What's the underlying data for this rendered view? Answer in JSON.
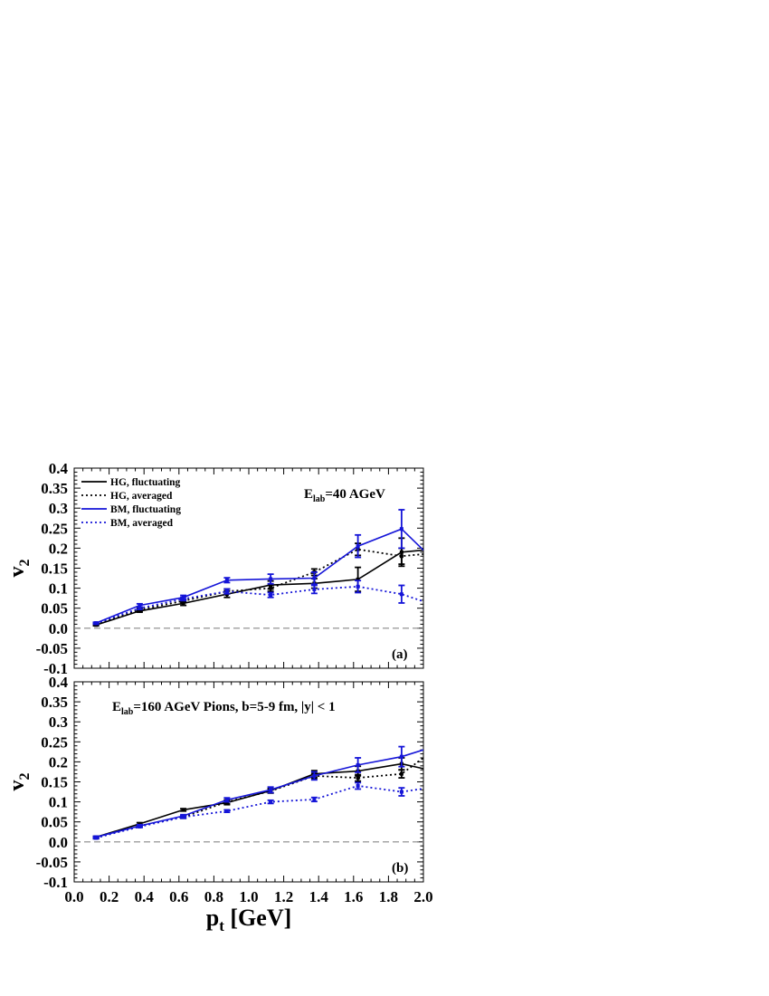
{
  "chart_data": [
    {
      "type": "line",
      "panel_label": "(a)",
      "annotation": "E_lab=40 AGeV",
      "annotation_main": "E",
      "annotation_sub": "lab",
      "annotation_rest": "=40 AGeV",
      "ylabel": "v",
      "ylabel_sub": "2",
      "xlim": [
        0.0,
        2.0
      ],
      "ylim": [
        -0.1,
        0.4
      ],
      "yticks": [
        "-0.1",
        "-0.05",
        "0.0",
        "0.05",
        "0.1",
        "0.15",
        "0.2",
        "0.25",
        "0.3",
        "0.35",
        "0.4"
      ],
      "zero_line": true,
      "legend": "top-left",
      "x": [
        0.125,
        0.375,
        0.625,
        0.875,
        1.125,
        1.375,
        1.625,
        1.875,
        2.0
      ],
      "series": [
        {
          "name": "HG, fluctuating",
          "color": "#000000",
          "style": "solid",
          "values": [
            0.008,
            0.043,
            0.062,
            0.085,
            0.108,
            0.112,
            0.122,
            0.19,
            0.195
          ],
          "errors": [
            0.002,
            0.003,
            0.005,
            0.008,
            0.01,
            0.012,
            0.03,
            0.035,
            0
          ]
        },
        {
          "name": "HG, averaged",
          "color": "#000000",
          "style": "dotted",
          "values": [
            0.01,
            0.046,
            0.068,
            0.092,
            0.1,
            0.14,
            0.197,
            0.18,
            0.185
          ],
          "errors": [
            0.002,
            0.003,
            0.004,
            0.006,
            0.008,
            0.008,
            0.015,
            0.02,
            0
          ]
        },
        {
          "name": "BM, fluctuating",
          "color": "#1515d8",
          "style": "solid",
          "values": [
            0.013,
            0.057,
            0.077,
            0.12,
            0.123,
            0.125,
            0.205,
            0.248,
            0.195
          ],
          "errors": [
            0.002,
            0.004,
            0.005,
            0.006,
            0.012,
            0.015,
            0.028,
            0.048,
            0
          ]
        },
        {
          "name": "BM, averaged",
          "color": "#1515d8",
          "style": "dotted",
          "values": [
            0.012,
            0.05,
            0.073,
            0.092,
            0.083,
            0.097,
            0.104,
            0.085,
            0.067
          ],
          "errors": [
            0.002,
            0.003,
            0.004,
            0.006,
            0.006,
            0.01,
            0.015,
            0.022,
            0
          ]
        }
      ]
    },
    {
      "type": "line",
      "panel_label": "(b)",
      "annotation": "E_lab=160 AGeV   Pions, b=5-9 fm, |y| < 1",
      "annotation_main": "E",
      "annotation_sub": "lab",
      "annotation_rest": "=160 AGeV    Pions, b=5-9 fm, |y| < 1",
      "ylabel": "v",
      "ylabel_sub": "2",
      "xlabel": "p",
      "xlabel_sub": "t",
      "xlabel_rest": " [GeV]",
      "xlim": [
        0.0,
        2.0
      ],
      "ylim": [
        -0.1,
        0.4
      ],
      "xticks": [
        "0.0",
        "0.2",
        "0.4",
        "0.6",
        "0.8",
        "1.0",
        "1.2",
        "1.4",
        "1.6",
        "1.8",
        "2.0"
      ],
      "yticks": [
        "-0.1",
        "-0.05",
        "0.0",
        "0.05",
        "0.1",
        "0.15",
        "0.2",
        "0.25",
        "0.3",
        "0.35",
        "0.4"
      ],
      "zero_line": true,
      "x": [
        0.125,
        0.375,
        0.625,
        0.875,
        1.125,
        1.375,
        1.625,
        1.875,
        2.0
      ],
      "series": [
        {
          "name": "HG, fluctuating",
          "color": "#000000",
          "style": "solid",
          "values": [
            0.012,
            0.045,
            0.08,
            0.098,
            0.128,
            0.17,
            0.177,
            0.195,
            0.183
          ],
          "errors": [
            0.002,
            0.003,
            0.003,
            0.005,
            0.005,
            0.008,
            0.012,
            0.015,
            0
          ]
        },
        {
          "name": "HG, averaged",
          "color": "#000000",
          "style": "dotted",
          "values": [
            0.01,
            0.04,
            0.062,
            0.1,
            0.127,
            0.165,
            0.16,
            0.17,
            0.21
          ],
          "errors": [
            0.002,
            0.003,
            0.003,
            0.005,
            0.005,
            0.006,
            0.008,
            0.01,
            0
          ]
        },
        {
          "name": "BM, fluctuating",
          "color": "#1515d8",
          "style": "solid",
          "values": [
            0.012,
            0.04,
            0.065,
            0.105,
            0.13,
            0.165,
            0.192,
            0.213,
            0.23
          ],
          "errors": [
            0.002,
            0.003,
            0.003,
            0.005,
            0.007,
            0.01,
            0.018,
            0.025,
            0
          ]
        },
        {
          "name": "BM, averaged",
          "color": "#1515d8",
          "style": "dotted",
          "values": [
            0.01,
            0.038,
            0.062,
            0.077,
            0.1,
            0.106,
            0.14,
            0.125,
            0.133
          ],
          "errors": [
            0.002,
            0.002,
            0.003,
            0.003,
            0.004,
            0.005,
            0.008,
            0.01,
            0
          ]
        }
      ]
    }
  ]
}
